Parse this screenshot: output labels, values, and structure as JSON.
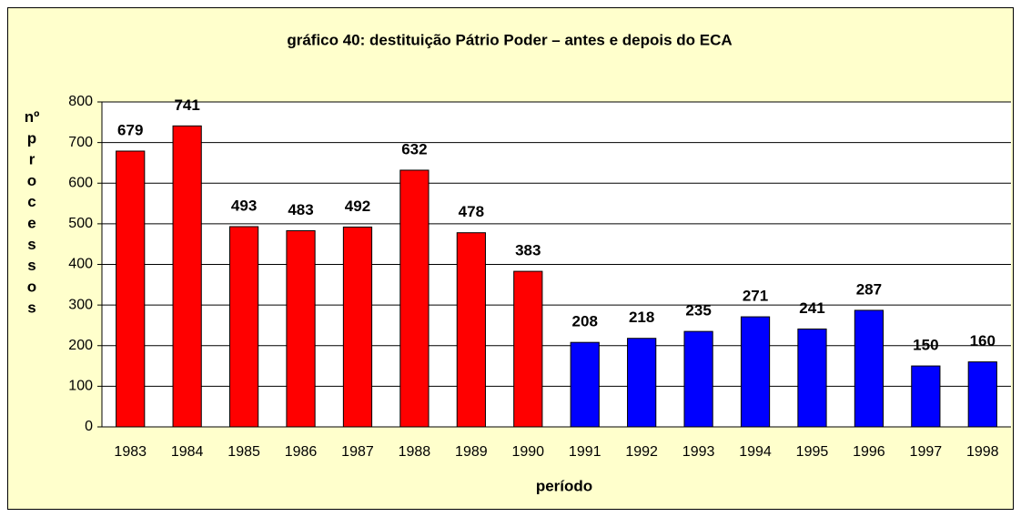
{
  "chart_data": {
    "type": "bar",
    "title": "gráfico 40: destituição Pátrio Poder – antes e depois do ECA",
    "y_label": "nº processos",
    "x_label": "período",
    "categories": [
      "1983",
      "1984",
      "1985",
      "1986",
      "1987",
      "1988",
      "1989",
      "1990",
      "1991",
      "1992",
      "1993",
      "1994",
      "1995",
      "1996",
      "1997",
      "1998"
    ],
    "values": [
      679,
      741,
      493,
      483,
      492,
      632,
      478,
      383,
      208,
      218,
      235,
      271,
      241,
      287,
      150,
      160
    ],
    "colors": [
      "#ff0000",
      "#ff0000",
      "#ff0000",
      "#ff0000",
      "#ff0000",
      "#ff0000",
      "#ff0000",
      "#ff0000",
      "#0000ff",
      "#0000ff",
      "#0000ff",
      "#0000ff",
      "#0000ff",
      "#0000ff",
      "#0000ff",
      "#0000ff"
    ],
    "ylim": [
      0,
      800
    ],
    "yticks": [
      0,
      100,
      200,
      300,
      400,
      500,
      600,
      700,
      800
    ],
    "grid": true
  }
}
